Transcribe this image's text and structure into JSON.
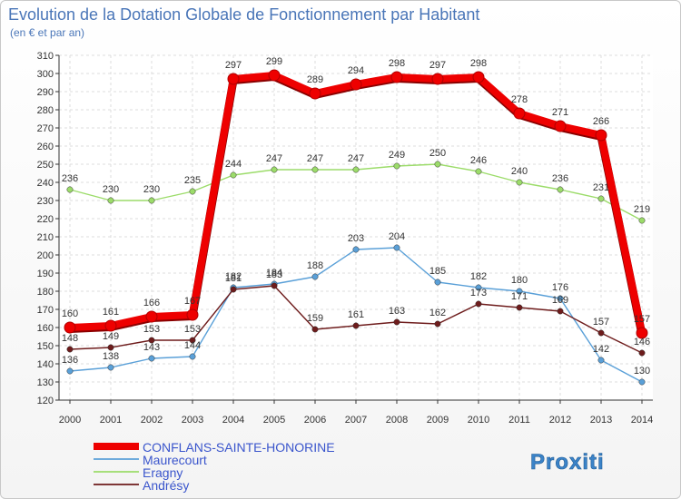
{
  "colors": {
    "conflans": "#ee0000",
    "maurecourt": "#5aa0d8",
    "eragny": "#9cdc6a",
    "andresy": "#6e1c1c",
    "legend_text": "#3a55cc"
  },
  "chart_data": {
    "type": "line",
    "title": "Evolution de la Dotation Globale de Fonctionnement par Habitant",
    "subtitle": "(en € et par an)",
    "xlabel": "",
    "ylabel": "",
    "x": [
      "2000",
      "2001",
      "2002",
      "2003",
      "2004",
      "2005",
      "2006",
      "2007",
      "2008",
      "2009",
      "2010",
      "2011",
      "2012",
      "2013",
      "2014"
    ],
    "ylim": [
      120,
      310
    ],
    "yticks": [
      120,
      130,
      140,
      150,
      160,
      170,
      180,
      190,
      200,
      210,
      220,
      230,
      240,
      250,
      260,
      270,
      280,
      290,
      300,
      310
    ],
    "grid": true,
    "series": [
      {
        "name": "CONFLANS-SAINTE-HONORINE",
        "key": "conflans",
        "values": [
          160,
          161,
          166,
          167,
          297,
          299,
          289,
          294,
          298,
          297,
          298,
          278,
          271,
          266,
          157
        ]
      },
      {
        "name": "Maurecourt",
        "key": "maurecourt",
        "values": [
          136,
          138,
          143,
          144,
          182,
          184,
          188,
          203,
          204,
          185,
          182,
          180,
          176,
          142,
          130
        ]
      },
      {
        "name": "Eragny",
        "key": "eragny",
        "values": [
          236,
          230,
          230,
          235,
          244,
          247,
          247,
          247,
          249,
          250,
          246,
          240,
          236,
          231,
          219
        ]
      },
      {
        "name": "Andrésy",
        "key": "andresy",
        "values": [
          148,
          149,
          153,
          153,
          181,
          183,
          159,
          161,
          163,
          162,
          173,
          171,
          169,
          157,
          146
        ]
      }
    ]
  },
  "brand": {
    "logo_text": "Proxiti"
  }
}
